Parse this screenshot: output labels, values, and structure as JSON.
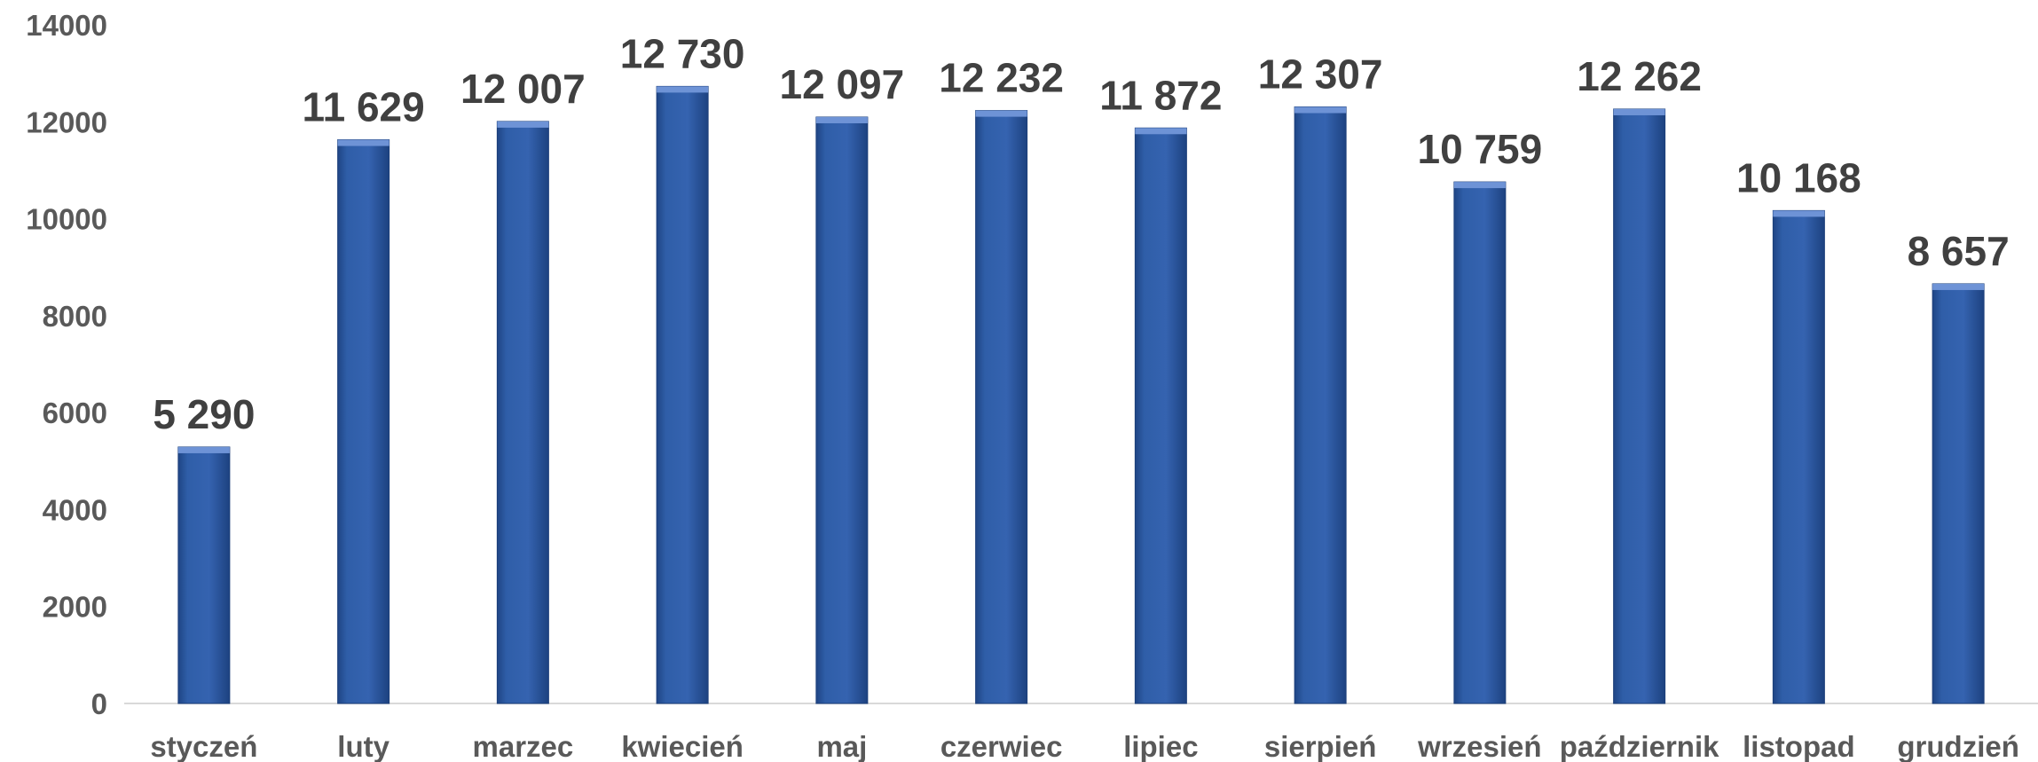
{
  "chart_data": {
    "type": "bar",
    "categories": [
      "styczeń",
      "luty",
      "marzec",
      "kwiecień",
      "maj",
      "czerwiec",
      "lipiec",
      "sierpień",
      "wrzesień",
      "październik",
      "listopad",
      "grudzień"
    ],
    "values": [
      5290,
      11629,
      12007,
      12730,
      12097,
      12232,
      11872,
      12307,
      10759,
      12262,
      10168,
      8657
    ],
    "data_labels": [
      "5 290",
      "11 629",
      "12 007",
      "12 730",
      "12 097",
      "12 232",
      "11 872",
      "12 307",
      "10 759",
      "12 262",
      "10 168",
      "8 657"
    ],
    "yticks": [
      "0",
      "2000",
      "4000",
      "6000",
      "8000",
      "10000",
      "12000",
      "14000"
    ],
    "ylim": [
      0,
      14000
    ],
    "title": "",
    "xlabel": "",
    "ylabel": "",
    "grid": false,
    "bar_color": "#2E5CA6",
    "bar_top_color": "#6E93D6"
  }
}
